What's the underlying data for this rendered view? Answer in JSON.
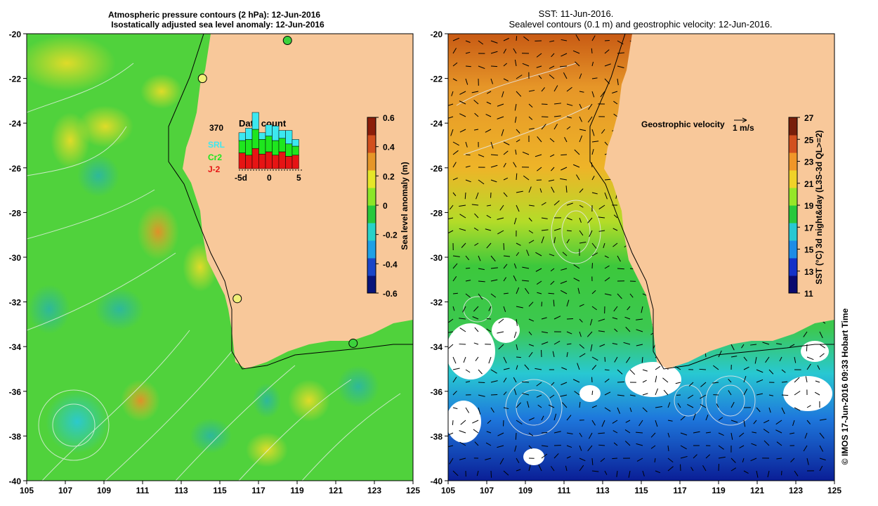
{
  "left_panel": {
    "title_line1": "Atmospheric pressure contours (2 hPa): 12-Jun-2016",
    "title_line2": "Isostatically adjusted sea level anomaly: 12-Jun-2016",
    "colorbar": {
      "label": "Sea level anomaly (m)",
      "ticks": [
        "0.6",
        "0.4",
        "0.2",
        "0",
        "-0.2",
        "-0.4",
        "-0.6"
      ],
      "colors": [
        "#08147a",
        "#1a46c8",
        "#1ea0e6",
        "#28d2c8",
        "#28c83c",
        "#8ce628",
        "#e6e628",
        "#e69628",
        "#d2501e",
        "#8c1e0a"
      ]
    },
    "inset": {
      "title": "Data count",
      "max_count": "370",
      "legend": [
        {
          "name": "SRL",
          "color": "#3ce8f0"
        },
        {
          "name": "Cr2",
          "color": "#1ee61e"
        },
        {
          "name": "J-2",
          "color": "#e61414"
        }
      ],
      "x_ticks": [
        "-5d",
        "0",
        "5"
      ],
      "bars": [
        {
          "j2": 0.28,
          "cr2": 0.22,
          "srl": 0.14
        },
        {
          "j2": 0.24,
          "cr2": 0.28,
          "srl": 0.2
        },
        {
          "j2": 0.36,
          "cr2": 0.34,
          "srl": 0.3
        },
        {
          "j2": 0.26,
          "cr2": 0.26,
          "srl": 0.12
        },
        {
          "j2": 0.3,
          "cr2": 0.28,
          "srl": 0.2
        },
        {
          "j2": 0.24,
          "cr2": 0.26,
          "srl": 0.26
        },
        {
          "j2": 0.3,
          "cr2": 0.24,
          "srl": 0.14
        },
        {
          "j2": 0.22,
          "cr2": 0.22,
          "srl": 0.24
        },
        {
          "j2": 0.24,
          "cr2": 0.16,
          "srl": 0.12
        }
      ]
    },
    "stations": [
      {
        "lon": 114.1,
        "lat": -22.0,
        "color": "#f0f078"
      },
      {
        "lon": 118.5,
        "lat": -20.3,
        "color": "#3cd23c"
      },
      {
        "lon": 115.9,
        "lat": -31.85,
        "color": "#f0f078"
      },
      {
        "lon": 121.9,
        "lat": -33.85,
        "color": "#3cd23c"
      }
    ]
  },
  "right_panel": {
    "title_line1": "SST: 11-Jun-2016.",
    "title_line2": "Sealevel contours (0.1 m) and geostrophic velocity: 12-Jun-2016.",
    "velocity_label": "Geostrophic velocity",
    "velocity_scale": "1 m/s",
    "colorbar": {
      "label": "SST (°C) 3d night&day (L3S-3d QL>=2)",
      "ticks": [
        "27",
        "25",
        "23",
        "21",
        "19",
        "17",
        "15",
        "13",
        "11"
      ],
      "colors": [
        "#0a0a6e",
        "#1432c8",
        "#1e8ce6",
        "#28c8d2",
        "#28c83c",
        "#96e628",
        "#f0d228",
        "#f09628",
        "#d2501e",
        "#781e0a"
      ]
    }
  },
  "x_axis_ticks": [
    "105",
    "107",
    "109",
    "111",
    "113",
    "115",
    "117",
    "119",
    "121",
    "123",
    "125"
  ],
  "y_axis_ticks": [
    "-20",
    "-22",
    "-24",
    "-26",
    "-28",
    "-30",
    "-32",
    "-34",
    "-36",
    "-38",
    "-40"
  ],
  "credit": "© IMOS 17-Jun-2016 09:33 Hobart Time"
}
